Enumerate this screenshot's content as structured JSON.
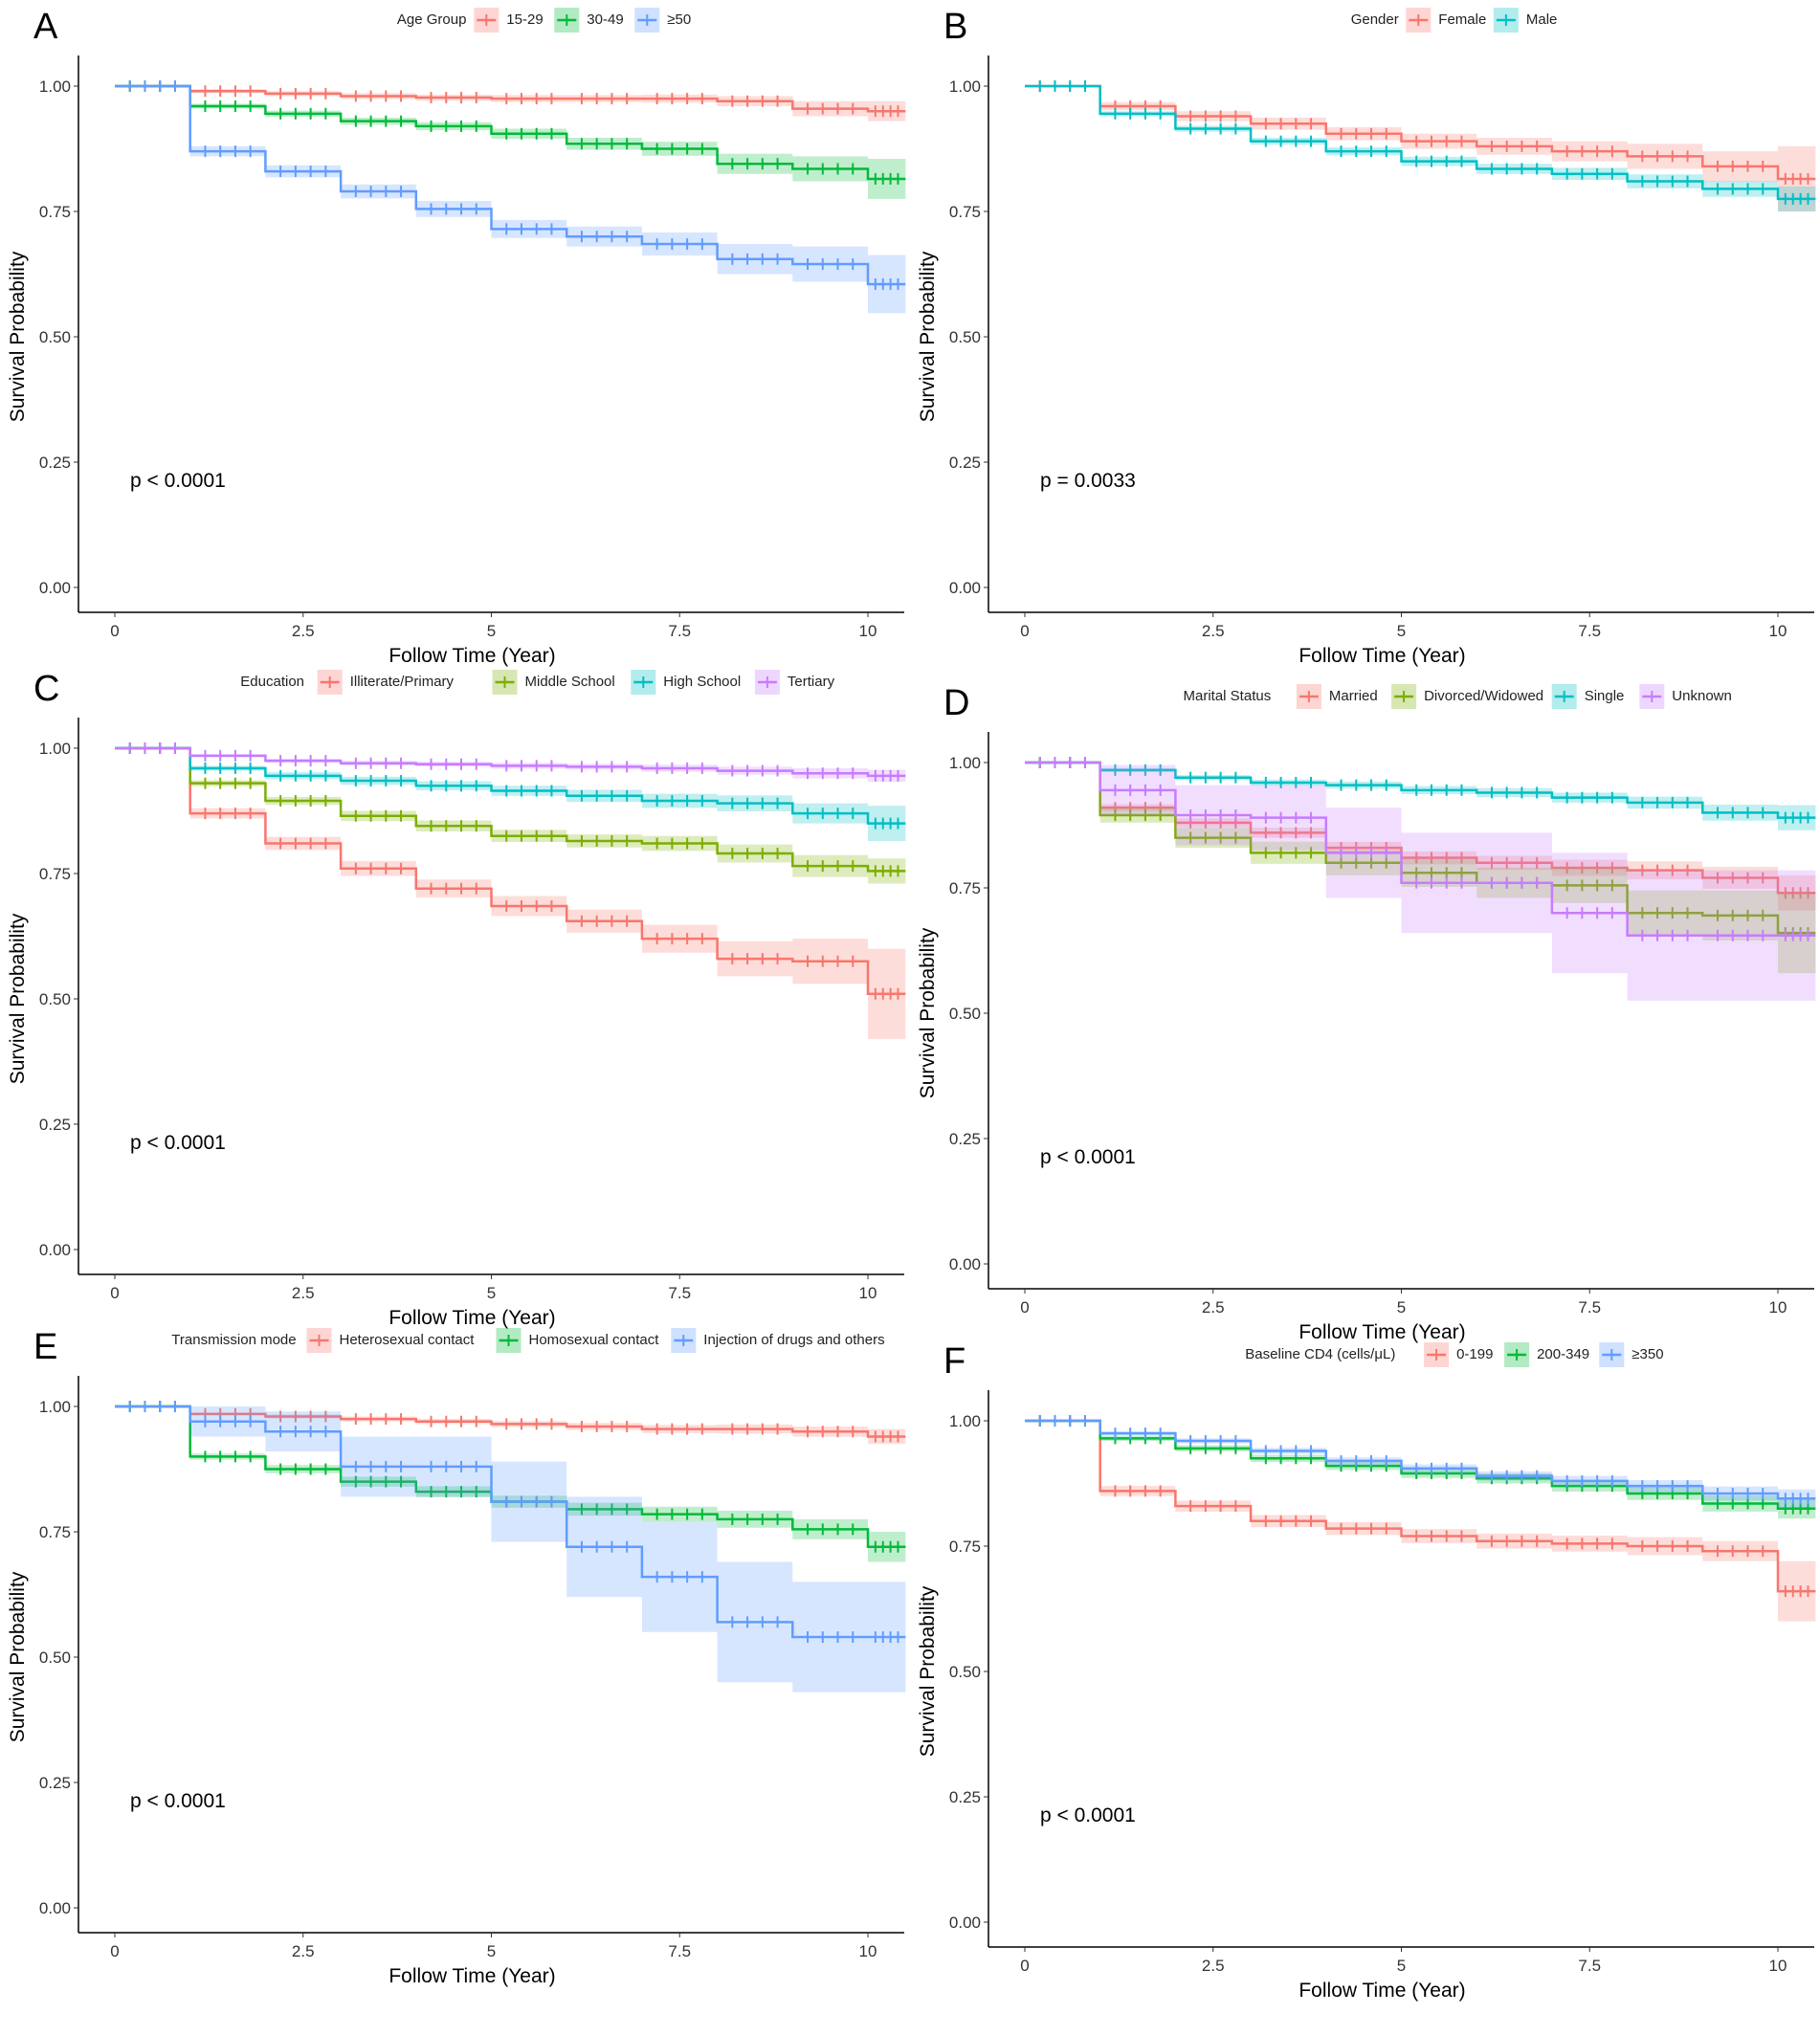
{
  "chart_data": [
    {
      "type": "line",
      "panel": "A",
      "legend_title": "Age Group",
      "xlabel": "Follow Time (Year)",
      "ylabel": "Survival Probability",
      "xticks": [
        "0",
        "2.5",
        "5",
        "7.5",
        "10"
      ],
      "yticks": [
        "0.00",
        "0.25",
        "0.50",
        "0.75",
        "1.00"
      ],
      "xlim": [
        0,
        10.5
      ],
      "ylim": [
        0,
        1
      ],
      "annotation": "p < 0.0001",
      "x": [
        0,
        1,
        2,
        3,
        4,
        5,
        6,
        7,
        8,
        9,
        10,
        10.5
      ],
      "series": [
        {
          "name": "15-29",
          "color": "#F8766D",
          "values": [
            1,
            0.99,
            0.985,
            0.98,
            0.977,
            0.975,
            0.975,
            0.975,
            0.97,
            0.955,
            0.95,
            0.95
          ],
          "ci": [
            0,
            0.004,
            0.005,
            0.006,
            0.006,
            0.007,
            0.007,
            0.008,
            0.01,
            0.015,
            0.02,
            0.02
          ]
        },
        {
          "name": "30-49",
          "color": "#00BA38",
          "values": [
            1,
            0.96,
            0.945,
            0.93,
            0.92,
            0.905,
            0.885,
            0.875,
            0.845,
            0.835,
            0.815,
            0.815
          ],
          "ci": [
            0,
            0.005,
            0.006,
            0.007,
            0.008,
            0.01,
            0.012,
            0.014,
            0.02,
            0.025,
            0.04,
            0.04
          ]
        },
        {
          "name": "≥50",
          "color": "#619CFF",
          "values": [
            1,
            0.87,
            0.83,
            0.79,
            0.755,
            0.715,
            0.7,
            0.685,
            0.655,
            0.645,
            0.605,
            0.605
          ],
          "ci": [
            0,
            0.01,
            0.012,
            0.014,
            0.016,
            0.018,
            0.02,
            0.023,
            0.03,
            0.035,
            0.058,
            0.058
          ]
        }
      ]
    },
    {
      "type": "line",
      "panel": "B",
      "legend_title": "Gender",
      "xlabel": "Follow Time (Year)",
      "ylabel": "Survival Probability",
      "xticks": [
        "0",
        "2.5",
        "5",
        "7.5",
        "10"
      ],
      "yticks": [
        "0.00",
        "0.25",
        "0.50",
        "0.75",
        "1.00"
      ],
      "xlim": [
        0,
        10.5
      ],
      "ylim": [
        0,
        1
      ],
      "annotation": "p = 0.0033",
      "x": [
        0,
        1,
        2,
        3,
        4,
        5,
        6,
        7,
        8,
        9,
        10,
        10.5
      ],
      "series": [
        {
          "name": "Female",
          "color": "#F8766D",
          "values": [
            1,
            0.96,
            0.94,
            0.925,
            0.905,
            0.89,
            0.88,
            0.87,
            0.86,
            0.84,
            0.815,
            0.815
          ],
          "ci": [
            0,
            0.008,
            0.01,
            0.012,
            0.013,
            0.015,
            0.017,
            0.02,
            0.025,
            0.03,
            0.065,
            0.065
          ]
        },
        {
          "name": "Male",
          "color": "#00BFC4",
          "values": [
            1,
            0.945,
            0.915,
            0.89,
            0.87,
            0.85,
            0.835,
            0.825,
            0.81,
            0.795,
            0.775,
            0.775
          ],
          "ci": [
            0,
            0.005,
            0.006,
            0.007,
            0.008,
            0.009,
            0.01,
            0.012,
            0.014,
            0.016,
            0.025,
            0.025
          ]
        }
      ]
    },
    {
      "type": "line",
      "panel": "C",
      "legend_title": "Education",
      "xlabel": "Follow Time (Year)",
      "ylabel": "Survival Probability",
      "xticks": [
        "0",
        "2.5",
        "5",
        "7.5",
        "10"
      ],
      "yticks": [
        "0.00",
        "0.25",
        "0.50",
        "0.75",
        "1.00"
      ],
      "xlim": [
        0,
        10.5
      ],
      "ylim": [
        0,
        1
      ],
      "annotation": "p < 0.0001",
      "x": [
        0,
        1,
        2,
        3,
        4,
        5,
        6,
        7,
        8,
        9,
        10,
        10.5
      ],
      "series": [
        {
          "name": "Illiterate/Primary",
          "color": "#F8766D",
          "values": [
            1,
            0.87,
            0.81,
            0.76,
            0.72,
            0.685,
            0.655,
            0.62,
            0.58,
            0.575,
            0.51,
            0.51
          ],
          "ci": [
            0,
            0.01,
            0.013,
            0.015,
            0.018,
            0.02,
            0.023,
            0.028,
            0.035,
            0.045,
            0.09,
            0.09
          ]
        },
        {
          "name": "Middle School",
          "color": "#7CAE00",
          "values": [
            1,
            0.93,
            0.895,
            0.865,
            0.845,
            0.825,
            0.815,
            0.81,
            0.79,
            0.765,
            0.755,
            0.755
          ],
          "ci": [
            0,
            0.006,
            0.008,
            0.01,
            0.011,
            0.012,
            0.013,
            0.015,
            0.018,
            0.022,
            0.025,
            0.025
          ]
        },
        {
          "name": "High School",
          "color": "#00BFC4",
          "values": [
            1,
            0.96,
            0.945,
            0.935,
            0.925,
            0.915,
            0.905,
            0.895,
            0.89,
            0.87,
            0.85,
            0.85
          ],
          "ci": [
            0,
            0.005,
            0.007,
            0.008,
            0.009,
            0.01,
            0.012,
            0.014,
            0.016,
            0.02,
            0.035,
            0.035
          ]
        },
        {
          "name": "Tertiary",
          "color": "#C77CFF",
          "values": [
            1,
            0.985,
            0.975,
            0.97,
            0.968,
            0.965,
            0.963,
            0.96,
            0.955,
            0.95,
            0.945,
            0.945
          ],
          "ci": [
            0,
            0.003,
            0.004,
            0.005,
            0.005,
            0.006,
            0.006,
            0.007,
            0.008,
            0.01,
            0.012,
            0.012
          ]
        }
      ]
    },
    {
      "type": "line",
      "panel": "D",
      "legend_title": "Marital Status",
      "xlabel": "Follow Time (Year)",
      "ylabel": "Survival Probability",
      "xticks": [
        "0",
        "2.5",
        "5",
        "7.5",
        "10"
      ],
      "yticks": [
        "0.00",
        "0.25",
        "0.50",
        "0.75",
        "1.00"
      ],
      "xlim": [
        0,
        10.5
      ],
      "ylim": [
        0,
        1
      ],
      "annotation": "p < 0.0001",
      "x": [
        0,
        1,
        2,
        3,
        4,
        5,
        6,
        7,
        8,
        9,
        10,
        10.5
      ],
      "series": [
        {
          "name": "Married",
          "color": "#F8766D",
          "values": [
            1,
            0.91,
            0.88,
            0.86,
            0.83,
            0.81,
            0.8,
            0.79,
            0.785,
            0.77,
            0.74,
            0.74
          ],
          "ci": [
            0,
            0.007,
            0.009,
            0.01,
            0.012,
            0.013,
            0.014,
            0.016,
            0.018,
            0.022,
            0.035,
            0.035
          ]
        },
        {
          "name": "Divorced/Widowed",
          "color": "#7CAE00",
          "values": [
            1,
            0.895,
            0.85,
            0.82,
            0.8,
            0.78,
            0.76,
            0.755,
            0.7,
            0.695,
            0.66,
            0.66
          ],
          "ci": [
            0,
            0.015,
            0.02,
            0.022,
            0.025,
            0.028,
            0.03,
            0.035,
            0.045,
            0.05,
            0.08,
            0.08
          ]
        },
        {
          "name": "Single",
          "color": "#00BFC4",
          "values": [
            1,
            0.985,
            0.97,
            0.96,
            0.955,
            0.945,
            0.94,
            0.93,
            0.92,
            0.9,
            0.89,
            0.89
          ],
          "ci": [
            0,
            0.004,
            0.005,
            0.006,
            0.007,
            0.008,
            0.009,
            0.01,
            0.012,
            0.016,
            0.025,
            0.025
          ]
        },
        {
          "name": "Unknown",
          "color": "#C77CFF",
          "values": [
            1,
            0.945,
            0.895,
            0.89,
            0.82,
            0.76,
            0.76,
            0.7,
            0.655,
            0.655,
            0.655,
            0.655
          ],
          "ci": [
            0,
            0.05,
            0.06,
            0.065,
            0.09,
            0.1,
            0.1,
            0.12,
            0.13,
            0.13,
            0.13,
            0.13
          ]
        }
      ]
    },
    {
      "type": "line",
      "panel": "E",
      "legend_title": "Transmission mode",
      "xlabel": "Follow Time (Year)",
      "ylabel": "Survival Probability",
      "xticks": [
        "0",
        "2.5",
        "5",
        "7.5",
        "10"
      ],
      "yticks": [
        "0.00",
        "0.25",
        "0.50",
        "0.75",
        "1.00"
      ],
      "xlim": [
        0,
        10.5
      ],
      "ylim": [
        0,
        1
      ],
      "annotation": "p < 0.0001",
      "x": [
        0,
        1,
        2,
        3,
        4,
        5,
        6,
        7,
        8,
        9,
        10,
        10.5
      ],
      "series": [
        {
          "name": "Heterosexual contact",
          "color": "#F8766D",
          "values": [
            1,
            0.985,
            0.98,
            0.975,
            0.97,
            0.965,
            0.96,
            0.955,
            0.955,
            0.95,
            0.94,
            0.94
          ],
          "ci": [
            0,
            0.003,
            0.004,
            0.005,
            0.005,
            0.006,
            0.007,
            0.008,
            0.009,
            0.01,
            0.015,
            0.015
          ]
        },
        {
          "name": "Homosexual contact",
          "color": "#00BA38",
          "values": [
            1,
            0.9,
            0.875,
            0.85,
            0.83,
            0.81,
            0.795,
            0.785,
            0.775,
            0.755,
            0.72,
            0.72
          ],
          "ci": [
            0,
            0.006,
            0.008,
            0.01,
            0.011,
            0.012,
            0.013,
            0.015,
            0.017,
            0.02,
            0.03,
            0.03
          ]
        },
        {
          "name": "Injection of drugs and others",
          "color": "#619CFF",
          "values": [
            1,
            0.97,
            0.95,
            0.88,
            0.88,
            0.81,
            0.72,
            0.66,
            0.57,
            0.54,
            0.54,
            0.54
          ],
          "ci": [
            0,
            0.03,
            0.04,
            0.06,
            0.06,
            0.08,
            0.1,
            0.11,
            0.12,
            0.11,
            0.11,
            0.11
          ]
        }
      ]
    },
    {
      "type": "line",
      "panel": "F",
      "legend_title": "Baseline CD4 (cells/μL)",
      "xlabel": "Follow Time (Year)",
      "ylabel": "Survival Probability",
      "xticks": [
        "0",
        "2.5",
        "5",
        "7.5",
        "10"
      ],
      "yticks": [
        "0.00",
        "0.25",
        "0.50",
        "0.75",
        "1.00"
      ],
      "xlim": [
        0,
        10.5
      ],
      "ylim": [
        0,
        1
      ],
      "annotation": "p < 0.0001",
      "x": [
        0,
        1,
        2,
        3,
        4,
        5,
        6,
        7,
        8,
        9,
        10,
        10.5
      ],
      "series": [
        {
          "name": "0-199",
          "color": "#F8766D",
          "values": [
            1,
            0.86,
            0.83,
            0.8,
            0.785,
            0.77,
            0.76,
            0.755,
            0.75,
            0.74,
            0.66,
            0.66
          ],
          "ci": [
            0,
            0.01,
            0.011,
            0.012,
            0.013,
            0.014,
            0.015,
            0.016,
            0.018,
            0.02,
            0.06,
            0.06
          ]
        },
        {
          "name": "200-349",
          "color": "#00BA38",
          "values": [
            1,
            0.965,
            0.945,
            0.925,
            0.91,
            0.895,
            0.885,
            0.87,
            0.855,
            0.835,
            0.825,
            0.825
          ],
          "ci": [
            0,
            0.005,
            0.006,
            0.007,
            0.008,
            0.009,
            0.01,
            0.011,
            0.013,
            0.016,
            0.02,
            0.02
          ]
        },
        {
          "name": "≥350",
          "color": "#619CFF",
          "values": [
            1,
            0.975,
            0.96,
            0.94,
            0.92,
            0.905,
            0.89,
            0.88,
            0.87,
            0.855,
            0.845,
            0.845
          ],
          "ci": [
            0,
            0.004,
            0.005,
            0.006,
            0.007,
            0.008,
            0.009,
            0.01,
            0.012,
            0.014,
            0.018,
            0.018
          ]
        }
      ]
    }
  ]
}
